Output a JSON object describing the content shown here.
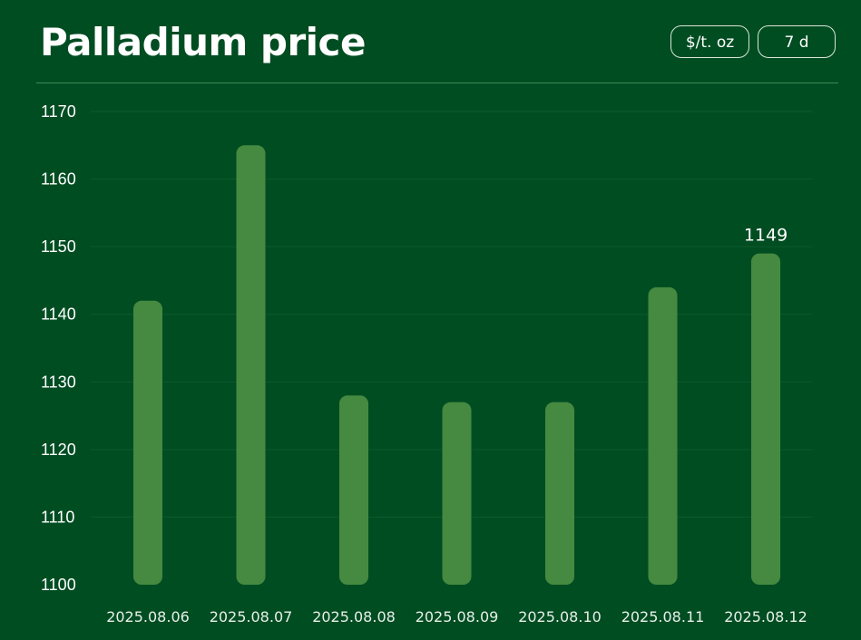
{
  "header": {
    "title": "Palladium price",
    "unit_label": "$/t. oz",
    "range_label": "7 d"
  },
  "colors": {
    "background": "#004d22",
    "bar": "#458a40",
    "text": "#ffffff"
  },
  "chart_data": {
    "type": "bar",
    "title": "Palladium price",
    "xlabel": "",
    "ylabel": "",
    "categories": [
      "2025.08.06",
      "2025.08.07",
      "2025.08.08",
      "2025.08.09",
      "2025.08.10",
      "2025.08.11",
      "2025.08.12"
    ],
    "values": [
      1142,
      1165,
      1128,
      1127,
      1127,
      1144,
      1149
    ],
    "ylim": [
      1100,
      1170
    ],
    "yticks": [
      1100,
      1110,
      1120,
      1130,
      1140,
      1150,
      1160,
      1170
    ],
    "data_labels": [
      {
        "index": 6,
        "text": "1149"
      }
    ],
    "grid": true,
    "legend": "none"
  }
}
